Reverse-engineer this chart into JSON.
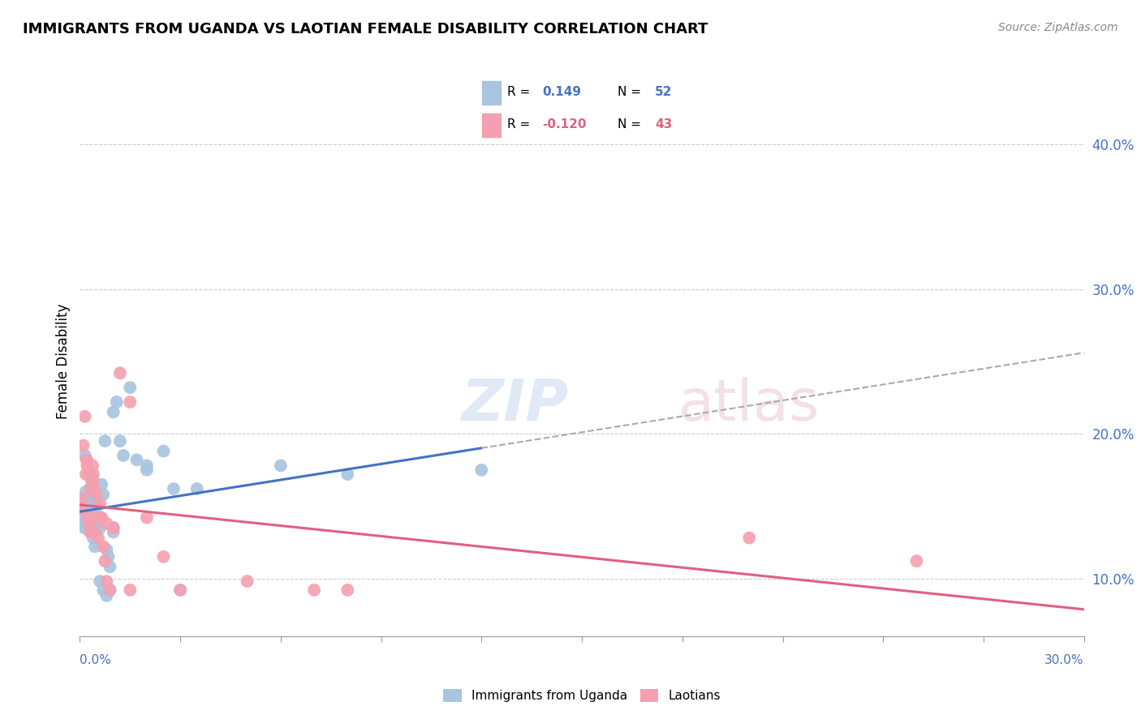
{
  "title": "IMMIGRANTS FROM UGANDA VS LAOTIAN FEMALE DISABILITY CORRELATION CHART",
  "source": "Source: ZipAtlas.com",
  "ylabel": "Female Disability",
  "right_yticks": [
    10.0,
    20.0,
    30.0,
    40.0
  ],
  "xlim": [
    0.0,
    30.0
  ],
  "ylim": [
    6.0,
    44.0
  ],
  "legend1_r": "0.149",
  "legend1_n": "52",
  "legend2_r": "-0.120",
  "legend2_n": "43",
  "blue_color": "#a8c4e0",
  "pink_color": "#f4a0b0",
  "blue_line_color": "#4472c4",
  "pink_line_color": "#e06080",
  "gray_dash_color": "#aaaaaa",
  "blue_x": [
    0.05,
    0.08,
    0.1,
    0.12,
    0.15,
    0.18,
    0.2,
    0.22,
    0.25,
    0.28,
    0.3,
    0.32,
    0.35,
    0.38,
    0.4,
    0.42,
    0.45,
    0.48,
    0.5,
    0.55,
    0.6,
    0.65,
    0.7,
    0.75,
    0.8,
    0.85,
    0.9,
    1.0,
    1.1,
    1.2,
    1.3,
    1.5,
    1.7,
    2.0,
    2.5,
    3.0,
    3.5,
    6.0,
    8.0,
    12.0,
    0.1,
    0.2,
    0.3,
    0.4,
    0.5,
    0.6,
    0.7,
    0.8,
    0.9,
    1.0,
    2.8,
    2.0
  ],
  "blue_y": [
    14.5,
    15.2,
    14.8,
    13.5,
    18.5,
    16.0,
    14.0,
    15.5,
    13.8,
    14.2,
    16.2,
    15.8,
    13.2,
    15.0,
    12.8,
    13.5,
    12.2,
    14.5,
    15.2,
    14.0,
    13.5,
    16.5,
    15.8,
    19.5,
    12.0,
    11.5,
    10.8,
    21.5,
    22.2,
    19.5,
    18.5,
    23.2,
    18.2,
    17.5,
    18.8,
    9.2,
    16.2,
    17.8,
    17.2,
    17.5,
    13.8,
    15.2,
    14.8,
    13.2,
    13.8,
    9.8,
    9.2,
    8.8,
    9.2,
    13.2,
    16.2,
    17.8
  ],
  "pink_x": [
    0.05,
    0.08,
    0.1,
    0.15,
    0.18,
    0.2,
    0.22,
    0.25,
    0.28,
    0.3,
    0.32,
    0.35,
    0.38,
    0.4,
    0.42,
    0.45,
    0.5,
    0.55,
    0.6,
    0.65,
    0.7,
    0.75,
    0.8,
    0.9,
    1.0,
    1.2,
    1.5,
    2.0,
    2.5,
    3.0,
    0.2,
    0.3,
    0.4,
    0.5,
    0.6,
    0.8,
    1.0,
    1.5,
    5.0,
    7.0,
    8.0,
    20.0,
    25.0
  ],
  "pink_y": [
    14.8,
    15.5,
    19.2,
    21.2,
    17.2,
    18.2,
    17.8,
    14.2,
    13.8,
    13.2,
    16.2,
    16.8,
    17.8,
    17.2,
    16.2,
    13.2,
    14.2,
    12.8,
    14.2,
    14.2,
    12.2,
    11.2,
    9.8,
    9.2,
    13.5,
    24.2,
    22.2,
    14.2,
    11.5,
    9.2,
    18.2,
    17.2,
    16.8,
    15.8,
    15.2,
    13.8,
    13.5,
    9.2,
    9.8,
    9.2,
    9.2,
    12.8,
    11.2
  ]
}
